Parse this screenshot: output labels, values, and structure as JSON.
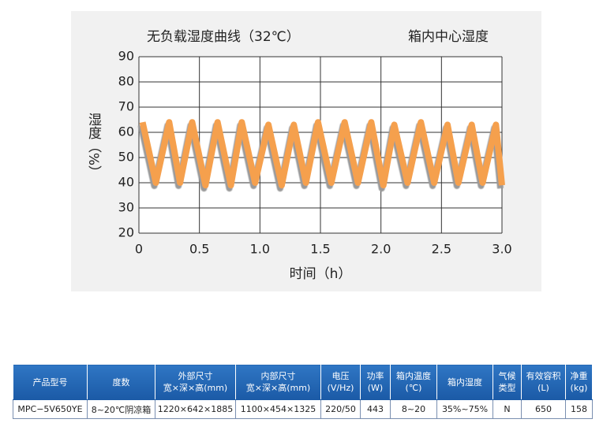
{
  "chart_data": {
    "type": "line",
    "title": "无负载湿度曲线（32℃）",
    "y_label": "湿度（%）",
    "x_label": "时间（h）",
    "x": [
      0.03,
      0.14,
      0.25,
      0.34,
      0.44,
      0.55,
      0.65,
      0.76,
      0.85,
      0.96,
      1.07,
      1.18,
      1.28,
      1.38,
      1.48,
      1.59,
      1.7,
      1.81,
      1.92,
      2.02,
      2.11,
      2.22,
      2.33,
      2.44,
      2.55,
      2.64,
      2.75,
      2.84,
      2.95,
      3.0
    ],
    "series": [
      {
        "name": "箱内中心湿度",
        "color": "#f5a04e",
        "values": [
          64,
          40,
          64,
          40,
          64,
          39,
          64,
          39,
          64,
          40,
          63,
          39,
          63,
          40,
          64,
          40,
          64,
          40,
          64,
          39,
          63,
          40,
          64,
          40,
          63,
          40,
          63,
          40,
          63,
          39
        ]
      }
    ],
    "xlim": [
      0,
      3
    ],
    "ylim": [
      20,
      90
    ],
    "xticks": [
      0,
      0.5,
      {
        "value": 1,
        "label": "1.0"
      },
      1.5,
      {
        "value": 2,
        "label": "2.0"
      },
      2.5,
      {
        "value": 3,
        "label": "3.0"
      }
    ],
    "yticks": [
      20,
      30,
      40,
      50,
      60,
      70,
      80,
      90
    ],
    "grid": true
  },
  "table": {
    "headers": [
      [
        "产品型号"
      ],
      [
        "度数"
      ],
      [
        "外部尺寸",
        "宽×深×高(mm)"
      ],
      [
        "内部尺寸",
        "宽×深×高(mm)"
      ],
      [
        "电压",
        "(V/Hz)"
      ],
      [
        "功率",
        "(W)"
      ],
      [
        "箱内温度",
        "(℃)"
      ],
      [
        "箱内湿度"
      ],
      [
        "气候",
        "类型"
      ],
      [
        "有效容积",
        "(L)"
      ],
      [
        "净重",
        "(kg)"
      ]
    ],
    "rows": [
      [
        "MPC−5V650YE",
        "8~20℃阴凉箱",
        "1220×642×1885",
        "1100×454×1325",
        "220/50",
        "443",
        "8~20",
        "35%~75%",
        "N",
        "650",
        "158"
      ]
    ]
  }
}
